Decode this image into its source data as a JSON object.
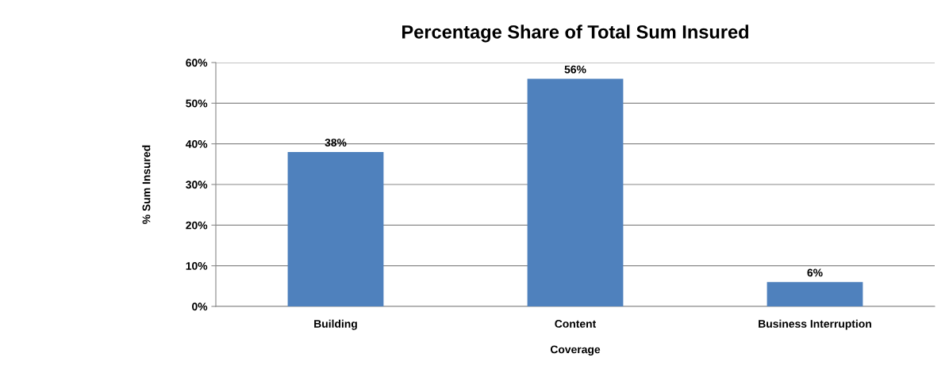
{
  "chart_data": {
    "type": "bar",
    "title": "Percentage Share of Total Sum Insured",
    "xlabel": "Coverage",
    "ylabel": "% Sum Insured",
    "categories": [
      "Building",
      "Content",
      "Business Interruption"
    ],
    "values": [
      38,
      56,
      6
    ],
    "color": "#4f81bd",
    "value_labels": [
      "38%",
      "56%",
      "6%"
    ],
    "ylim": [
      0,
      60
    ],
    "yticks": [
      {
        "value": 0,
        "label": "0%"
      },
      {
        "value": 10,
        "label": "10%"
      },
      {
        "value": 20,
        "label": "20%"
      },
      {
        "value": 30,
        "label": "30%"
      },
      {
        "value": 40,
        "label": "40%"
      },
      {
        "value": 50,
        "label": "50%"
      },
      {
        "value": 60,
        "label": "60%"
      }
    ],
    "grid": "y",
    "legend": false
  }
}
